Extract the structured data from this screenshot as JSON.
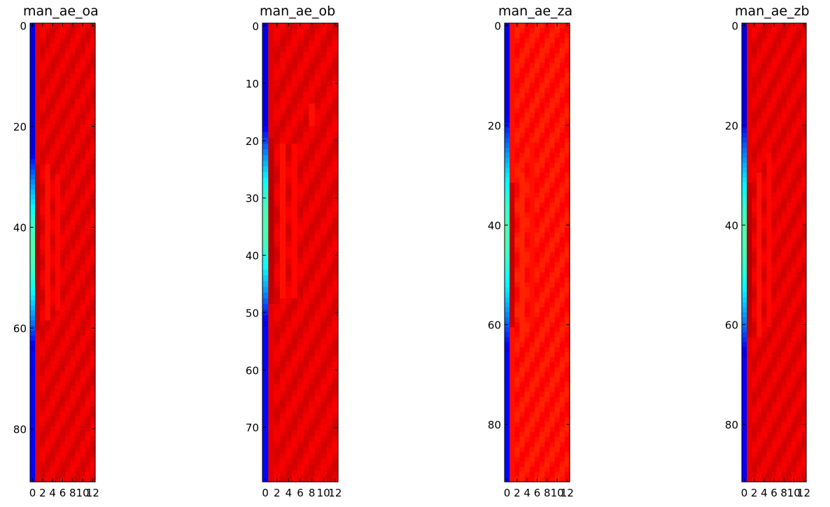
{
  "figure": {
    "layout": "1 row x 4 columns of heatmap subplots",
    "colormap": "jet"
  },
  "chart_data": [
    {
      "type": "heatmap",
      "title": "man_ae_oa",
      "n_rows": 91,
      "n_cols": 13,
      "xlim": [
        -0.5,
        12.5
      ],
      "ylim": [
        90.5,
        -0.5
      ],
      "xticks": [
        0,
        2,
        4,
        6,
        8,
        10,
        12
      ],
      "xtick_labels": [
        "0",
        "2",
        "4",
        "6",
        "8",
        "10",
        "12"
      ],
      "yticks": [
        0,
        20,
        40,
        60,
        80
      ],
      "ytick_labels": [
        "0",
        "20",
        "40",
        "60",
        "80"
      ],
      "col0_band": {
        "start_row": 28,
        "end_row": 62,
        "peak_value": 0.45
      },
      "col1_dark_band": {
        "start_row": 28,
        "end_row": 60,
        "value": 0.93
      },
      "col_features": [
        {
          "col": 3,
          "start_row": 28,
          "end_row": 58,
          "value": 0.86
        },
        {
          "col": 5,
          "start_row": 30,
          "end_row": 56,
          "value": 0.87
        }
      ],
      "background_value": 0.9
    },
    {
      "type": "heatmap",
      "title": "man_ae_ob",
      "n_rows": 80,
      "n_cols": 13,
      "xlim": [
        -0.5,
        12.5
      ],
      "ylim": [
        79.5,
        -0.5
      ],
      "xticks": [
        0,
        2,
        4,
        6,
        8,
        10,
        12
      ],
      "xtick_labels": [
        "0",
        "2",
        "4",
        "6",
        "8",
        "10",
        "12"
      ],
      "yticks": [
        0,
        10,
        20,
        30,
        40,
        50,
        60,
        70
      ],
      "ytick_labels": [
        "0",
        "10",
        "20",
        "30",
        "40",
        "50",
        "60",
        "70"
      ],
      "col0_band": {
        "start_row": 20,
        "end_row": 50,
        "peak_value": 0.45
      },
      "col1_dark_band": {
        "start_row": 20,
        "end_row": 48,
        "value": 0.93
      },
      "col_features": [
        {
          "col": 3,
          "start_row": 21,
          "end_row": 47,
          "value": 0.86
        },
        {
          "col": 5,
          "start_row": 21,
          "end_row": 47,
          "value": 0.87
        },
        {
          "col": 8,
          "start_row": 14,
          "end_row": 17,
          "value": 0.86
        }
      ],
      "background_value": 0.9
    },
    {
      "type": "heatmap",
      "title": "man_ae_za",
      "n_rows": 92,
      "n_cols": 13,
      "xlim": [
        -0.5,
        12.5
      ],
      "ylim": [
        91.5,
        -0.5
      ],
      "xticks": [
        0,
        2,
        4,
        6,
        8,
        10,
        12
      ],
      "xtick_labels": [
        "0",
        "2",
        "4",
        "6",
        "8",
        "10",
        "12"
      ],
      "yticks": [
        0,
        20,
        40,
        60,
        80
      ],
      "ytick_labels": [
        "0",
        "20",
        "40",
        "60",
        "80"
      ],
      "col0_band": {
        "start_row": 21,
        "end_row": 63,
        "peak_value": 0.45
      },
      "col1_dark_band": {
        "start_row": 32,
        "end_row": 60,
        "value": 0.92
      },
      "col_features": [
        {
          "col": 3,
          "start_row": 30,
          "end_row": 62,
          "value": 0.84
        },
        {
          "col": 5,
          "start_row": 24,
          "end_row": 60,
          "value": 0.86
        }
      ],
      "background_value": 0.86
    },
    {
      "type": "heatmap",
      "title": "man_ae_zb",
      "n_rows": 92,
      "n_cols": 13,
      "xlim": [
        -0.5,
        12.5
      ],
      "ylim": [
        91.5,
        -0.5
      ],
      "xticks": [
        0,
        2,
        4,
        6,
        8,
        10,
        12
      ],
      "xtick_labels": [
        "0",
        "2",
        "4",
        "6",
        "8",
        "10",
        "12"
      ],
      "yticks": [
        0,
        20,
        40,
        60,
        80
      ],
      "ytick_labels": [
        "0",
        "20",
        "40",
        "60",
        "80"
      ],
      "col0_band": {
        "start_row": 22,
        "end_row": 64,
        "peak_value": 0.45
      },
      "col1_dark_band": {
        "start_row": 32,
        "end_row": 62,
        "value": 0.93
      },
      "col_features": [
        {
          "col": 3,
          "start_row": 30,
          "end_row": 62,
          "value": 0.86
        },
        {
          "col": 5,
          "start_row": 26,
          "end_row": 60,
          "value": 0.87
        }
      ],
      "background_value": 0.9
    }
  ]
}
